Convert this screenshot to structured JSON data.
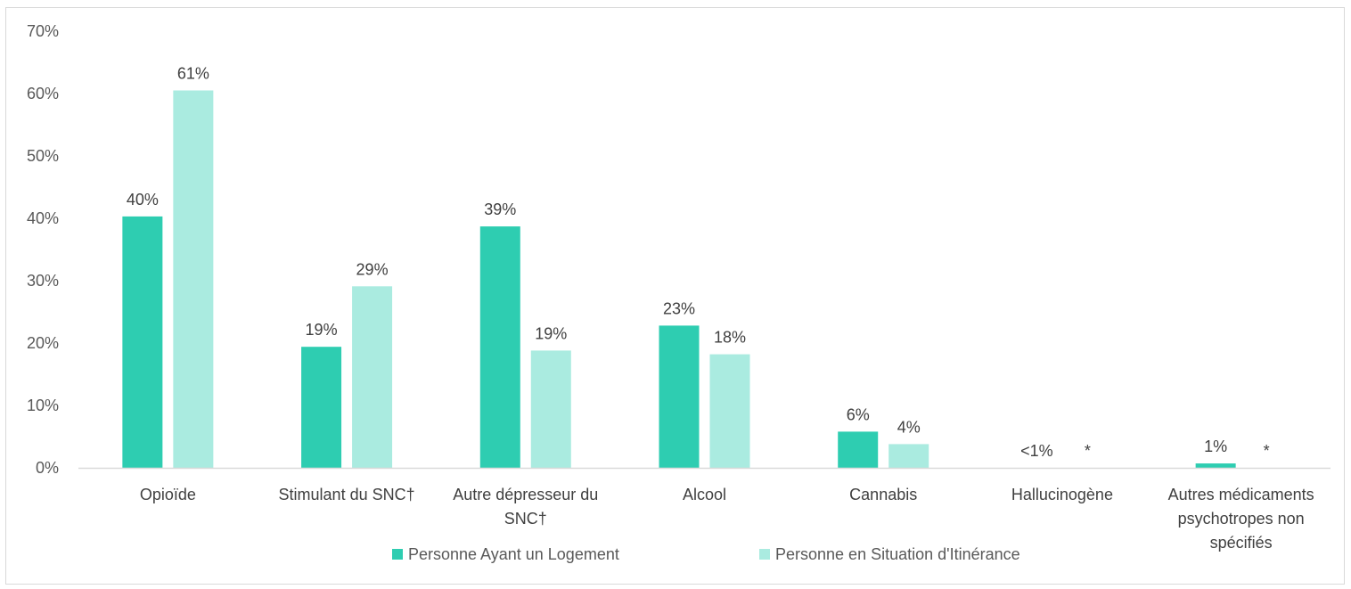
{
  "chart_data": {
    "type": "bar",
    "categories": [
      [
        "Opioïde"
      ],
      [
        "Stimulant du SNC†"
      ],
      [
        "Autre dépresseur du",
        "SNC†"
      ],
      [
        "Alcool"
      ],
      [
        "Cannabis"
      ],
      [
        "Hallucinogène"
      ],
      [
        "Autres médicaments",
        "psychotropes non",
        "spécifiés"
      ]
    ],
    "series": [
      {
        "name": "Personne Ayant un Logement",
        "color": "#2ecdb1",
        "values": [
          40.3,
          19.4,
          38.7,
          22.8,
          5.8,
          0.0,
          0.7
        ],
        "labels": [
          "40%",
          "19%",
          "39%",
          "23%",
          "6%",
          "<1%",
          "1%"
        ]
      },
      {
        "name": "Personne en Situation d'Itinérance",
        "color": "#aaebe0",
        "values": [
          60.5,
          29.1,
          18.8,
          18.2,
          3.8,
          null,
          null
        ],
        "labels": [
          "61%",
          "29%",
          "19%",
          "18%",
          "4%",
          "*",
          "*"
        ]
      }
    ],
    "ylim": [
      0,
      70
    ],
    "yticks": [
      "0%",
      "10%",
      "20%",
      "30%",
      "40%",
      "50%",
      "60%",
      "70%"
    ],
    "ytick_values": [
      0,
      10,
      20,
      30,
      40,
      50,
      60,
      70
    ],
    "legend": "bottom",
    "grid": false
  }
}
